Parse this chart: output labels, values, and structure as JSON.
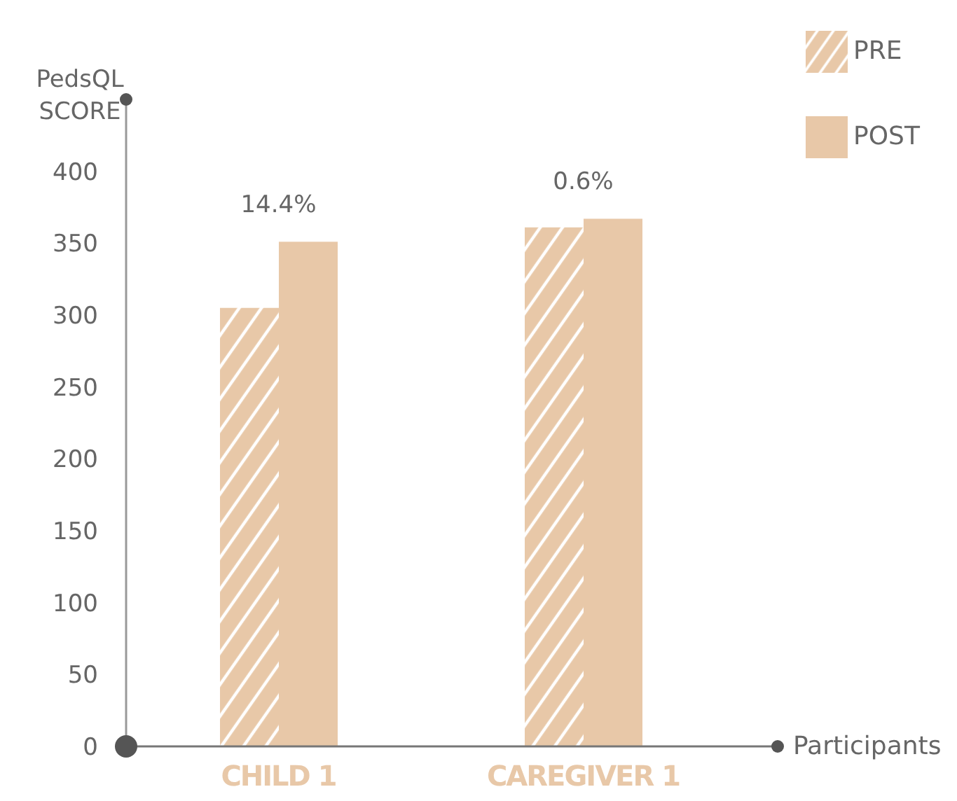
{
  "chart_data": {
    "type": "bar",
    "ylabel": "PedsQL SCORE",
    "xlabel": "Participants",
    "categories": [
      "CHILD 1",
      "CAREGIVER 1"
    ],
    "series": [
      {
        "name": "PRE",
        "color": "#e8c8a8",
        "values": [
          305,
          361
        ]
      },
      {
        "name": "POST",
        "color": "#e8c8a8",
        "values": [
          351,
          367
        ]
      }
    ],
    "ylim": [
      0,
      450
    ],
    "yticks": [
      0,
      50,
      100,
      150,
      200,
      250,
      300,
      350,
      400
    ],
    "annotations": [
      "14.4%",
      "0.6%"
    ],
    "legend": "top right"
  }
}
